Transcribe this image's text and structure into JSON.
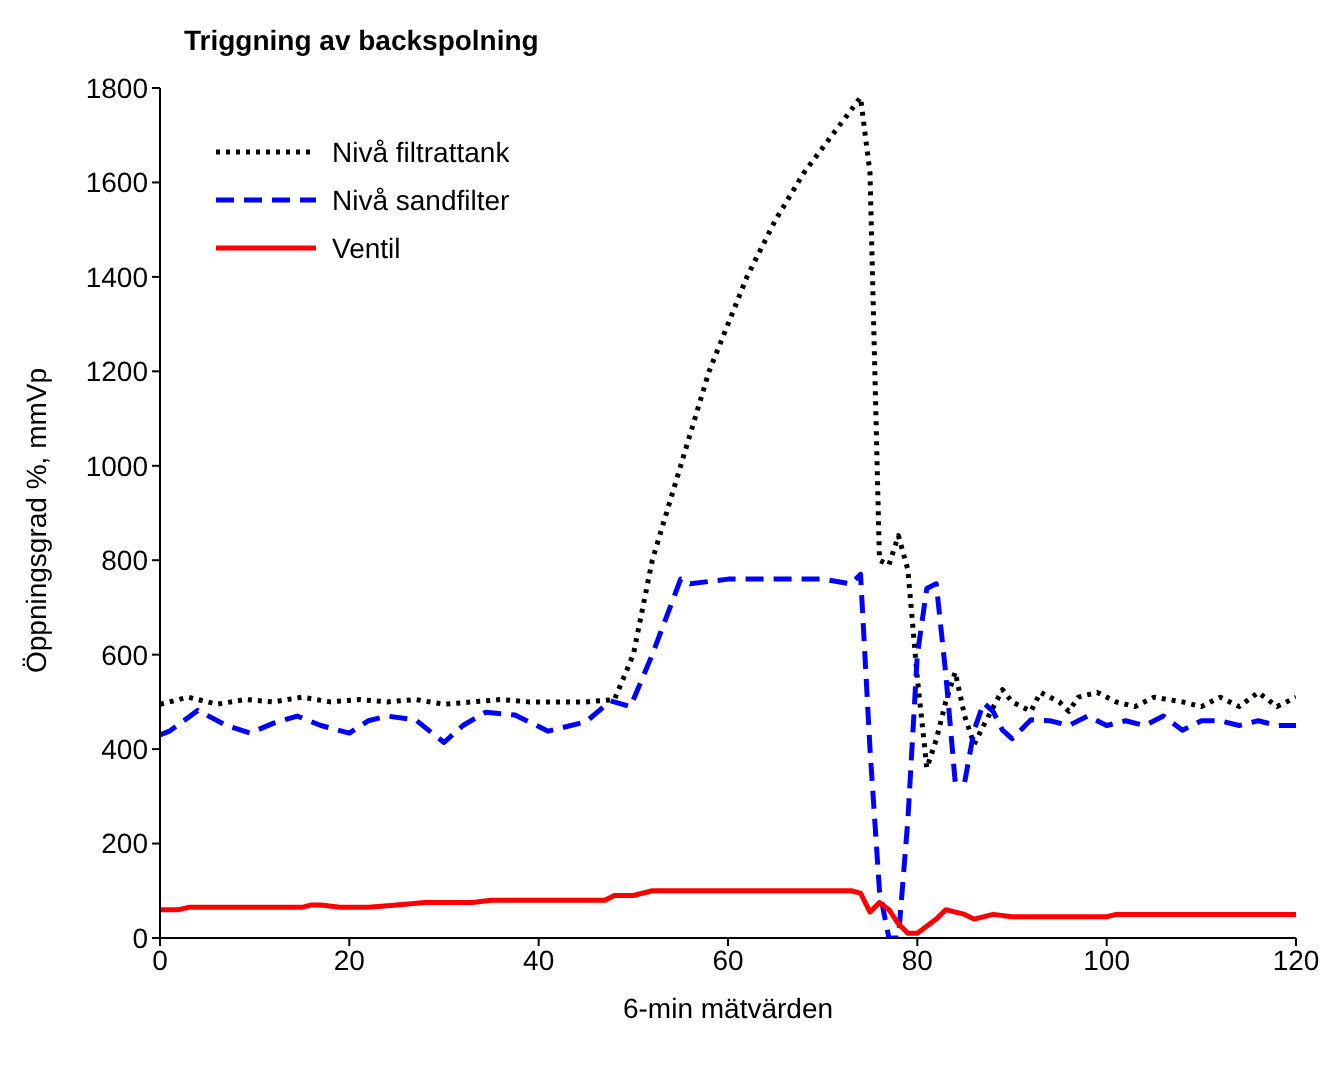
{
  "chart_data": {
    "type": "line",
    "title": "Triggning av backspolning",
    "xlabel": "6-min mätvärden",
    "ylabel": "Öppningsgrad %, mmVp",
    "xlim": [
      0,
      120
    ],
    "xticks": [
      0,
      20,
      40,
      60,
      80,
      100,
      120
    ],
    "ylim": [
      0,
      1800
    ],
    "yticks": [
      0,
      200,
      400,
      600,
      800,
      1000,
      1200,
      1400,
      1600,
      1800
    ],
    "grid": false,
    "legend": "top left",
    "marker": "none",
    "series": [
      {
        "name": "Nivå filtrattank",
        "color": "#000000",
        "line_style": "dotted",
        "x": [
          0,
          3,
          6,
          9,
          12,
          15,
          18,
          21,
          24,
          27,
          30,
          33,
          36,
          39,
          42,
          45,
          48,
          50,
          52,
          55,
          58,
          62,
          65,
          68,
          71,
          74,
          75,
          76,
          77,
          78,
          79,
          80,
          81,
          82,
          83,
          84,
          85,
          86,
          87,
          89,
          90,
          92,
          93,
          95,
          96,
          97,
          99,
          101,
          103,
          105,
          108,
          110,
          112,
          114,
          116,
          118,
          120
        ],
        "values": [
          495,
          510,
          495,
          505,
          500,
          510,
          500,
          505,
          500,
          505,
          495,
          500,
          505,
          500,
          500,
          500,
          505,
          600,
          800,
          1000,
          1200,
          1400,
          1520,
          1620,
          1700,
          1780,
          1620,
          800,
          790,
          852,
          780,
          550,
          360,
          420,
          500,
          563,
          470,
          410,
          450,
          526,
          500,
          480,
          520,
          500,
          480,
          510,
          520,
          500,
          490,
          510,
          500,
          490,
          510,
          490,
          520,
          490,
          510
        ]
      },
      {
        "name": "Nivå sandfilter",
        "color": "#0000ff",
        "line_style": "dashed",
        "x": [
          0,
          1,
          4,
          7,
          9.5,
          12,
          14.5,
          17,
          20,
          22,
          24,
          27,
          30,
          32,
          34.4,
          37.5,
          41,
          45,
          47.6,
          49.7,
          52,
          55,
          56,
          60,
          65,
          70,
          73,
          74,
          75,
          76,
          77,
          78,
          79,
          80,
          81,
          82,
          83,
          84,
          85,
          86,
          87,
          88,
          89,
          90,
          92,
          94,
          96,
          98,
          100,
          102,
          104,
          106,
          108,
          110,
          112,
          114,
          116,
          118,
          120
        ],
        "values": [
          430,
          438,
          482,
          450,
          434,
          455,
          470,
          450,
          434,
          460,
          470,
          462,
          414,
          450,
          478,
          472,
          438,
          458,
          502,
          490,
          600,
          760,
          750,
          760,
          760,
          760,
          750,
          770,
          400,
          100,
          0,
          0,
          250,
          600,
          740,
          750,
          560,
          330,
          330,
          440,
          498,
          480,
          440,
          422,
          462,
          460,
          450,
          470,
          450,
          460,
          450,
          470,
          440,
          460,
          460,
          450,
          460,
          450,
          450
        ]
      },
      {
        "name": "Ventil",
        "color": "#ff0000",
        "line_style": "solid",
        "x": [
          0,
          2,
          3,
          15,
          16,
          17,
          19,
          22,
          25,
          28,
          33,
          35,
          47,
          48,
          50,
          52,
          73,
          74,
          75,
          76,
          77,
          78,
          79,
          80,
          82,
          83,
          85,
          86,
          88,
          90,
          100,
          101,
          120
        ],
        "values": [
          60,
          60,
          65,
          65,
          70,
          70,
          65,
          65,
          70,
          75,
          75,
          80,
          80,
          90,
          90,
          100,
          100,
          95,
          55,
          75,
          60,
          30,
          10,
          10,
          40,
          60,
          50,
          40,
          50,
          45,
          45,
          50,
          50
        ]
      }
    ]
  }
}
